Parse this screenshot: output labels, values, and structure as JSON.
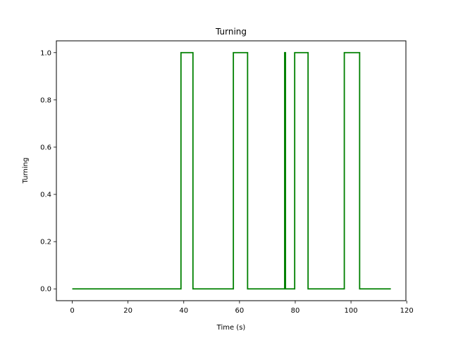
{
  "chart_data": {
    "type": "line",
    "title": "Turning",
    "xlabel": "Time (s)",
    "ylabel": "Turning",
    "xlim": [
      -5.7,
      119.7
    ],
    "ylim": [
      -0.05,
      1.05
    ],
    "xticks": [
      0,
      20,
      40,
      60,
      80,
      100,
      120
    ],
    "xtick_labels": [
      "0",
      "20",
      "40",
      "60",
      "80",
      "100",
      "120"
    ],
    "yticks": [
      0.0,
      0.2,
      0.4,
      0.6,
      0.8,
      1.0
    ],
    "ytick_labels": [
      "0.0",
      "0.2",
      "0.4",
      "0.6",
      "0.8",
      "1.0"
    ],
    "grid": false,
    "series": [
      {
        "color": "#008000",
        "x": [
          0,
          39,
          39,
          43.3,
          43.3,
          57.8,
          57.8,
          62.9,
          62.9,
          76.2,
          76.2,
          76.5,
          76.5,
          79.8,
          79.8,
          84.6,
          84.6,
          97.6,
          97.6,
          103.1,
          103.1,
          114.3
        ],
        "y": [
          0,
          0,
          1,
          1,
          0,
          0,
          1,
          1,
          0,
          0,
          1,
          1,
          0,
          0,
          1,
          1,
          0,
          0,
          1,
          1,
          0,
          0
        ]
      }
    ]
  }
}
